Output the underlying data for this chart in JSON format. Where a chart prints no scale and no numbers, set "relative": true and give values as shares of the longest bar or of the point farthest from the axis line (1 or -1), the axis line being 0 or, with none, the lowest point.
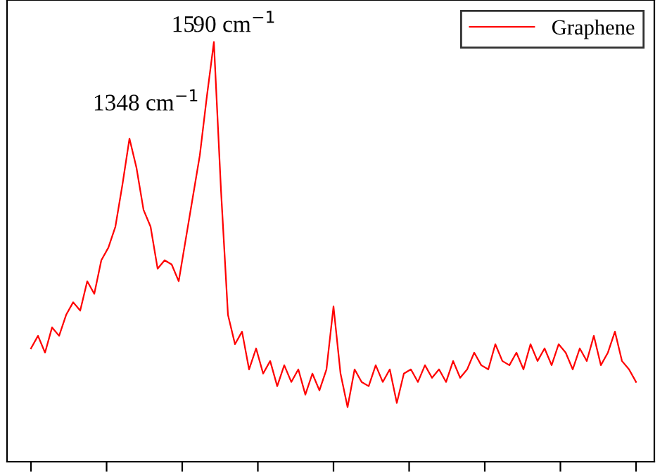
{
  "chart_data": {
    "type": "line",
    "relative": true,
    "legend": "top right",
    "grid": false,
    "categories": [
      null,
      null,
      null,
      null,
      null,
      null,
      null,
      null,
      null,
      null,
      null,
      null,
      null,
      null,
      null,
      null,
      null,
      null,
      null,
      null,
      null,
      null,
      null,
      null,
      null,
      null,
      null,
      null,
      null,
      null,
      null,
      null,
      null,
      null,
      null,
      null,
      null,
      null,
      null,
      null,
      null,
      null,
      null,
      null,
      null,
      null,
      null,
      null,
      null,
      null,
      null,
      null,
      null,
      null,
      null,
      null,
      null,
      null,
      null,
      null,
      null,
      null,
      null,
      null,
      null,
      null,
      null,
      null,
      null,
      null,
      null,
      null,
      null,
      null,
      null,
      null,
      null,
      null,
      null,
      null,
      null,
      null,
      null,
      null,
      null,
      null,
      null
    ],
    "series": [
      {
        "name": "Graphene",
        "color": "#ff0000",
        "values": [
          0.27,
          0.3,
          0.26,
          0.32,
          0.3,
          0.35,
          0.38,
          0.36,
          0.43,
          0.4,
          0.48,
          0.51,
          0.56,
          0.66,
          0.77,
          0.7,
          0.6,
          0.56,
          0.46,
          0.48,
          0.47,
          0.43,
          0.53,
          0.63,
          0.73,
          0.87,
          1.0,
          0.65,
          0.35,
          0.28,
          0.31,
          0.22,
          0.27,
          0.21,
          0.24,
          0.18,
          0.23,
          0.19,
          0.22,
          0.16,
          0.21,
          0.17,
          0.22,
          0.37,
          0.21,
          0.13,
          0.22,
          0.19,
          0.18,
          0.23,
          0.19,
          0.22,
          0.14,
          0.21,
          0.22,
          0.19,
          0.23,
          0.2,
          0.22,
          0.19,
          0.24,
          0.2,
          0.22,
          0.26,
          0.23,
          0.22,
          0.28,
          0.24,
          0.23,
          0.26,
          0.22,
          0.28,
          0.24,
          0.27,
          0.23,
          0.28,
          0.26,
          0.22,
          0.27,
          0.24,
          0.3,
          0.23,
          0.26,
          0.31,
          0.24,
          0.22,
          0.19
        ]
      }
    ],
    "annotations": [
      "1348 cm$^{−1}$",
      "1590 cm$^{−1}$"
    ]
  }
}
